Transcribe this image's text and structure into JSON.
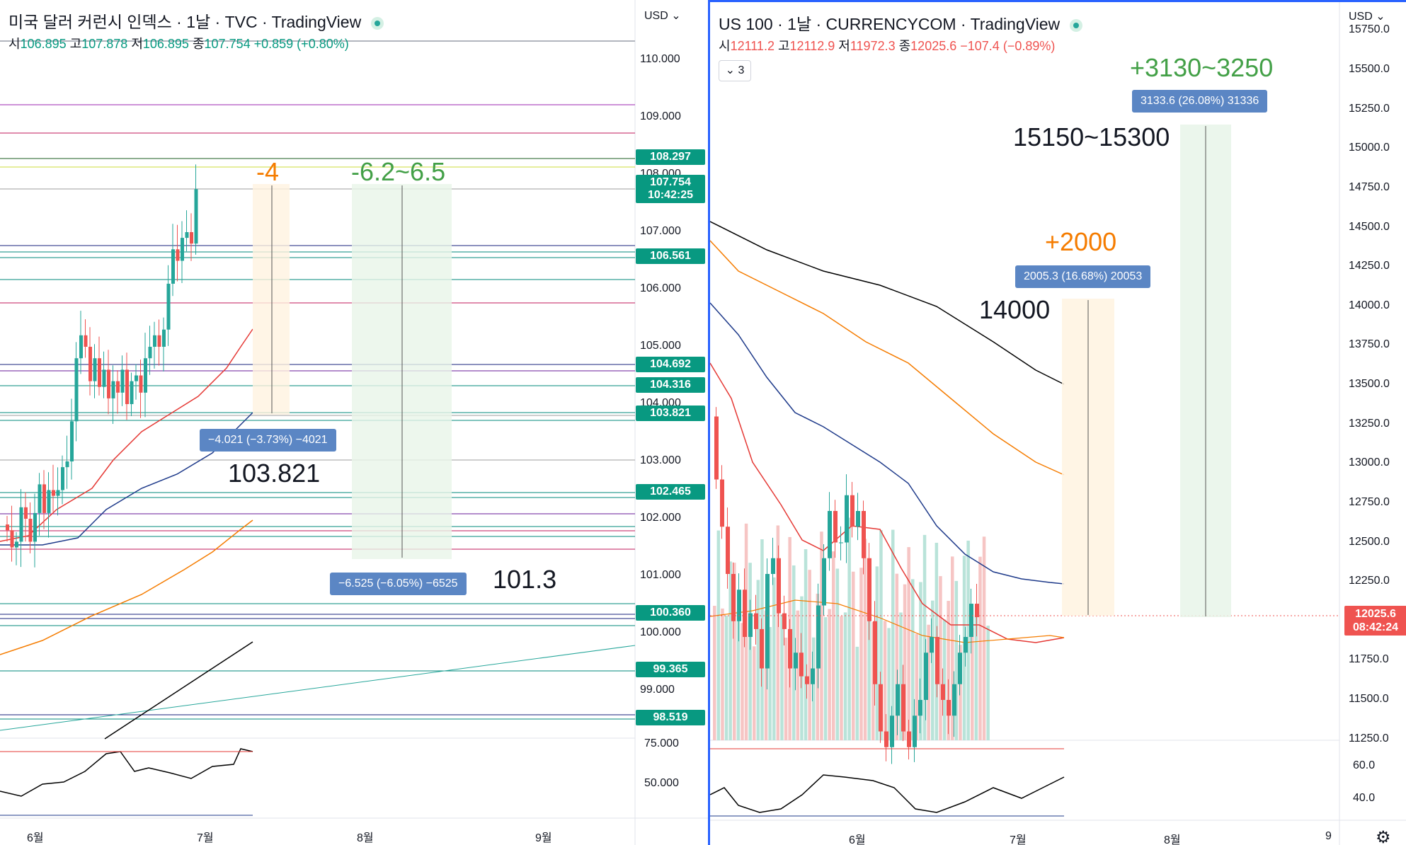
{
  "left": {
    "title": "미국 달러 커런시 인덱스 · 1날 · TVC · TradingView",
    "ohlc": {
      "o_label": "시",
      "o": "106.895",
      "h_label": "고",
      "h": "107.878",
      "l_label": "저",
      "l": "106.895",
      "c_label": "종",
      "c": "107.754",
      "chg": "+0.859 (+0.80%)"
    },
    "currency": "USD",
    "price_ticks": [
      "110.000",
      "109.000",
      "108.000",
      "107.000",
      "106.000",
      "105.000",
      "104.000",
      "103.000",
      "102.000",
      "101.000",
      "100.000",
      "99.000"
    ],
    "osc_ticks": [
      "75.000",
      "50.000"
    ],
    "price_tags": [
      {
        "text": "108.297"
      },
      {
        "text": "107.754\n10:42:25"
      },
      {
        "text": "106.561"
      },
      {
        "text": "104.692"
      },
      {
        "text": "104.316"
      },
      {
        "text": "103.821"
      },
      {
        "text": "102.465"
      },
      {
        "text": "100.360"
      },
      {
        "text": "99.365"
      },
      {
        "text": "98.519"
      }
    ],
    "annotations": {
      "minus4": "-4",
      "range62": "-6.2~6.5",
      "box1": "−4.021 (−3.73%) −4021",
      "box2": "−6.525 (−6.05%) −6525",
      "lvl1": "103.821",
      "lvl2": "101.3"
    },
    "time_ticks": [
      "6월",
      "7월",
      "8월",
      "9월"
    ]
  },
  "right": {
    "title": "US 100 · 1날 · CURRENCYCOM · TradingView",
    "ohlc": {
      "o_label": "시",
      "o": "12111.2",
      "h_label": "고",
      "h": "12112.9",
      "l_label": "저",
      "l": "11972.3",
      "c_label": "종",
      "c": "12025.6",
      "chg": "−107.4 (−0.89%)"
    },
    "indicators_count": "3",
    "currency": "USD",
    "price_ticks": [
      "15750.0",
      "15500.0",
      "15250.0",
      "15000.0",
      "14750.0",
      "14500.0",
      "14250.0",
      "14000.0",
      "13750.0",
      "13500.0",
      "13250.0",
      "13000.0",
      "12750.0",
      "12500.0",
      "12250.0",
      "11750.0",
      "11500.0",
      "11250.0"
    ],
    "osc_ticks": [
      "60.0",
      "40.0"
    ],
    "last_price": "12025.6\n08:42:24",
    "annotations": {
      "plus2000": "+2000",
      "plus3130": "+3130~3250",
      "box1": "2005.3 (16.68%) 20053",
      "box2": "3133.6 (26.08%) 31336",
      "lvl14000": "14000",
      "lvl15150": "15150~15300"
    },
    "time_ticks": [
      "6월",
      "7월",
      "8월",
      "9"
    ]
  },
  "colors": {
    "up": "#26a69a",
    "down": "#ef5350",
    "tag": "#089981",
    "box": "#5b86c4",
    "orange": "#f57c00",
    "green": "#43a047",
    "pane_border": "#2962ff"
  }
}
